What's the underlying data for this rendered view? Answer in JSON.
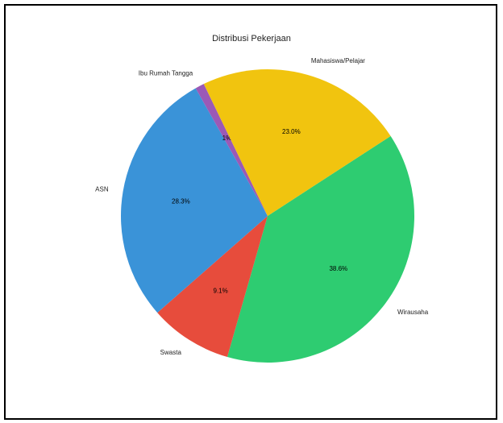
{
  "chart_data": {
    "type": "pie",
    "title": "Distribusi Pekerjaan",
    "slices": [
      {
        "label": "Wirausaha",
        "value": 38.6,
        "pct_label": "38.6%",
        "color": "#2ecc71"
      },
      {
        "label": "Swasta",
        "value": 9.1,
        "pct_label": "9.1%",
        "color": "#e74c3c"
      },
      {
        "label": "ASN",
        "value": 28.3,
        "pct_label": "28.3%",
        "color": "#3a93d8"
      },
      {
        "label": "Ibu Rumah Tangga",
        "value": 1,
        "pct_label": "1%",
        "color": "#9b59b6"
      },
      {
        "label": "Mahasiswa/Pelajar",
        "value": 23,
        "pct_label": "23.0%",
        "color": "#f1c40f"
      }
    ],
    "start_angle_deg": 33,
    "direction": "clockwise-from-right"
  }
}
